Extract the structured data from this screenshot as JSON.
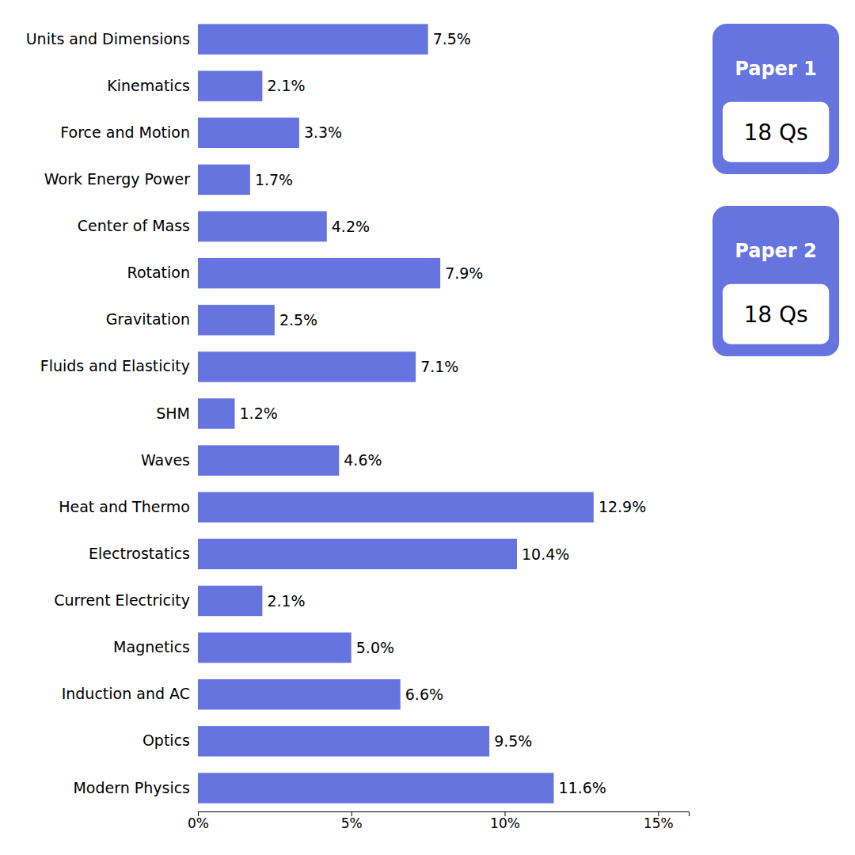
{
  "chart_data": {
    "type": "bar",
    "orientation": "horizontal",
    "categories": [
      "Units and Dimensions",
      "Kinematics",
      "Force and Motion",
      "Work Energy Power",
      "Center of Mass",
      "Rotation",
      "Gravitation",
      "Fluids and Elasticity",
      "SHM",
      "Waves",
      "Heat and Thermo",
      "Electrostatics",
      "Current Electricity",
      "Magnetics",
      "Induction and AC",
      "Optics",
      "Modern Physics"
    ],
    "values": [
      7.5,
      2.1,
      3.3,
      1.7,
      4.2,
      7.9,
      2.5,
      7.1,
      1.2,
      4.6,
      12.9,
      10.4,
      2.1,
      5.0,
      6.6,
      9.5,
      11.6
    ],
    "value_labels": [
      "7.5%",
      "2.1%",
      "3.3%",
      "1.7%",
      "4.2%",
      "7.9%",
      "2.5%",
      "7.1%",
      "1.2%",
      "4.6%",
      "12.9%",
      "10.4%",
      "2.1%",
      "5.0%",
      "6.6%",
      "9.5%",
      "11.6%"
    ],
    "data_labels": true,
    "color": "#6674e0",
    "xlim": [
      0,
      16
    ],
    "xticks": [
      {
        "value": 0,
        "label": "0%"
      },
      {
        "value": 5,
        "label": "5%"
      },
      {
        "value": 10,
        "label": "10%"
      },
      {
        "value": 15,
        "label": "15%"
      }
    ],
    "grid": false,
    "annotations": [
      {
        "label": "Paper 1",
        "text": "18 Qs"
      },
      {
        "label": "Paper 2",
        "text": "18 Qs"
      }
    ]
  }
}
